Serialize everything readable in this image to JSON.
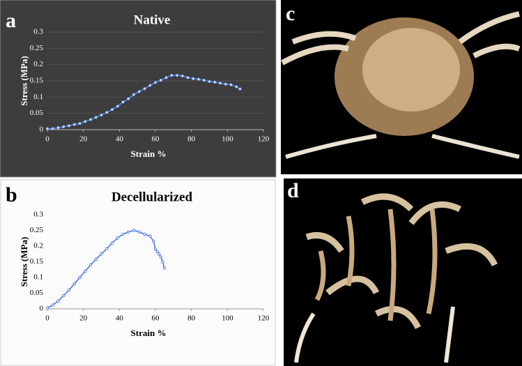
{
  "panel_labels": [
    "a",
    "b",
    "c",
    "d"
  ],
  "chart_data": [
    {
      "type": "line",
      "title": "Native",
      "x_label": "Strain %",
      "y_label": "Stress (MPa)",
      "x": [
        0,
        3,
        6,
        9,
        12,
        15,
        18,
        21,
        24,
        27,
        30,
        33,
        36,
        39,
        42,
        45,
        48,
        51,
        54,
        57,
        60,
        63,
        66,
        69,
        72,
        75,
        78,
        81,
        84,
        87,
        90,
        93,
        96,
        99,
        102,
        105,
        107
      ],
      "values": [
        0.003,
        0.003,
        0.006,
        0.009,
        0.012,
        0.016,
        0.019,
        0.025,
        0.031,
        0.038,
        0.045,
        0.053,
        0.062,
        0.072,
        0.085,
        0.095,
        0.108,
        0.117,
        0.126,
        0.136,
        0.145,
        0.152,
        0.16,
        0.167,
        0.167,
        0.165,
        0.16,
        0.157,
        0.155,
        0.152,
        0.148,
        0.146,
        0.143,
        0.14,
        0.138,
        0.132,
        0.125
      ],
      "color": "#5b8ff0",
      "xlim": [
        0,
        120
      ],
      "ylim": [
        0,
        0.3
      ],
      "xticks": [
        0,
        20,
        40,
        60,
        80,
        100,
        120
      ],
      "yticks": [
        0,
        0.05,
        0.1,
        0.15,
        0.2,
        0.25,
        0.3
      ],
      "grid": true
    },
    {
      "type": "line",
      "title": "Decellularized",
      "x_label": "Strain %",
      "y_label": "Stress (MPa)",
      "x": [
        0,
        3,
        6,
        9,
        12,
        15,
        18,
        21,
        24,
        27,
        30,
        33,
        36,
        39,
        42,
        45,
        48,
        51,
        54,
        57,
        59,
        60,
        61,
        62,
        63,
        64,
        65
      ],
      "values": [
        0.003,
        0.012,
        0.025,
        0.042,
        0.06,
        0.08,
        0.1,
        0.12,
        0.14,
        0.158,
        0.175,
        0.192,
        0.21,
        0.226,
        0.238,
        0.245,
        0.25,
        0.245,
        0.238,
        0.232,
        0.215,
        0.19,
        0.182,
        0.175,
        0.165,
        0.15,
        0.13
      ],
      "color": "#3f6fd8",
      "xlim": [
        0,
        120
      ],
      "ylim": [
        0,
        0.3
      ],
      "xticks": [
        0,
        20,
        40,
        60,
        80,
        100,
        120
      ],
      "yticks": [
        0,
        0.05,
        0.1,
        0.15,
        0.2,
        0.25,
        0.3
      ],
      "grid": false
    }
  ]
}
